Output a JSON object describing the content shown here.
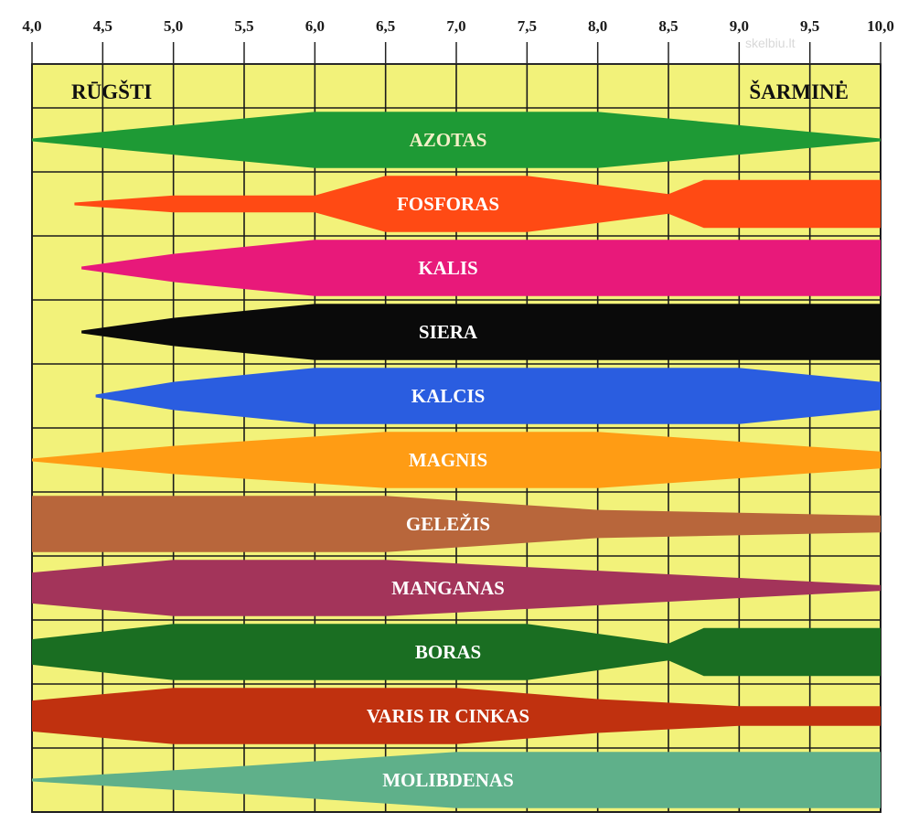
{
  "chart_data": {
    "type": "area",
    "title": "",
    "xlabel": "",
    "ylabel": "",
    "xlim": [
      4.0,
      10.0
    ],
    "x_ticks": [
      "4,0",
      "4,5",
      "5,0",
      "5,5",
      "6,0",
      "6,5",
      "7,0",
      "7,5",
      "8,0",
      "8,5",
      "9,0",
      "9,5",
      "10,0"
    ],
    "left_label": "RŪGŠTI",
    "right_label": "ŠARMINĖ",
    "grid": true,
    "background_color": "#f2f27a",
    "watermark": "skelbiu.lt",
    "series": [
      {
        "name": "AZOTAS",
        "color": "#1e9a35",
        "text_color": "#f5f0c8",
        "profile": [
          [
            4.0,
            0.05
          ],
          [
            6.0,
            1.0
          ],
          [
            8.0,
            1.0
          ],
          [
            10.0,
            0.05
          ]
        ]
      },
      {
        "name": "FOSFORAS",
        "color": "#ff4a14",
        "text_color": "#ffffff",
        "profile": [
          [
            4.3,
            0.05
          ],
          [
            5.0,
            0.3
          ],
          [
            6.0,
            0.3
          ],
          [
            6.5,
            1.0
          ],
          [
            7.5,
            1.0
          ],
          [
            8.5,
            0.35
          ],
          [
            8.75,
            0.85
          ],
          [
            10.0,
            0.85
          ]
        ]
      },
      {
        "name": "KALIS",
        "color": "#e8197a",
        "text_color": "#ffffff",
        "profile": [
          [
            4.35,
            0.05
          ],
          [
            5.0,
            0.5
          ],
          [
            6.0,
            1.0
          ],
          [
            10.0,
            1.0
          ]
        ]
      },
      {
        "name": "SIERA",
        "color": "#0a0a0a",
        "text_color": "#ffffff",
        "profile": [
          [
            4.35,
            0.05
          ],
          [
            5.0,
            0.5
          ],
          [
            6.0,
            1.0
          ],
          [
            10.0,
            1.0
          ]
        ]
      },
      {
        "name": "KALCIS",
        "color": "#2a5de0",
        "text_color": "#ffffff",
        "profile": [
          [
            4.45,
            0.05
          ],
          [
            5.0,
            0.5
          ],
          [
            6.0,
            1.0
          ],
          [
            9.0,
            1.0
          ],
          [
            10.0,
            0.5
          ]
        ]
      },
      {
        "name": "MAGNIS",
        "color": "#ff9c14",
        "text_color": "#ffffff",
        "profile": [
          [
            4.0,
            0.05
          ],
          [
            5.0,
            0.5
          ],
          [
            6.5,
            1.0
          ],
          [
            8.0,
            1.0
          ],
          [
            10.0,
            0.3
          ]
        ]
      },
      {
        "name": "GELEŽIS",
        "color": "#b8663b",
        "text_color": "#ffffff",
        "profile": [
          [
            4.0,
            1.0
          ],
          [
            6.5,
            1.0
          ],
          [
            8.0,
            0.5
          ],
          [
            10.0,
            0.3
          ]
        ]
      },
      {
        "name": "MANGANAS",
        "color": "#a3345a",
        "text_color": "#ffffff",
        "profile": [
          [
            4.0,
            0.55
          ],
          [
            5.0,
            1.0
          ],
          [
            6.5,
            1.0
          ],
          [
            10.0,
            0.1
          ]
        ]
      },
      {
        "name": "BORAS",
        "color": "#1a6e22",
        "text_color": "#ffffff",
        "profile": [
          [
            4.0,
            0.45
          ],
          [
            5.0,
            1.0
          ],
          [
            7.5,
            1.0
          ],
          [
            8.5,
            0.3
          ],
          [
            8.75,
            0.85
          ],
          [
            10.0,
            0.85
          ]
        ]
      },
      {
        "name": "VARIS IR CINKAS",
        "color": "#c0310f",
        "text_color": "#ffffff",
        "profile": [
          [
            4.0,
            0.55
          ],
          [
            5.0,
            1.0
          ],
          [
            7.0,
            1.0
          ],
          [
            8.0,
            0.6
          ],
          [
            9.0,
            0.35
          ],
          [
            10.0,
            0.35
          ]
        ]
      },
      {
        "name": "MOLIBDENAS",
        "color": "#5fb08a",
        "text_color": "#ffffff",
        "profile": [
          [
            4.0,
            0.05
          ],
          [
            5.5,
            0.5
          ],
          [
            7.0,
            1.0
          ],
          [
            10.0,
            1.0
          ]
        ]
      }
    ]
  }
}
